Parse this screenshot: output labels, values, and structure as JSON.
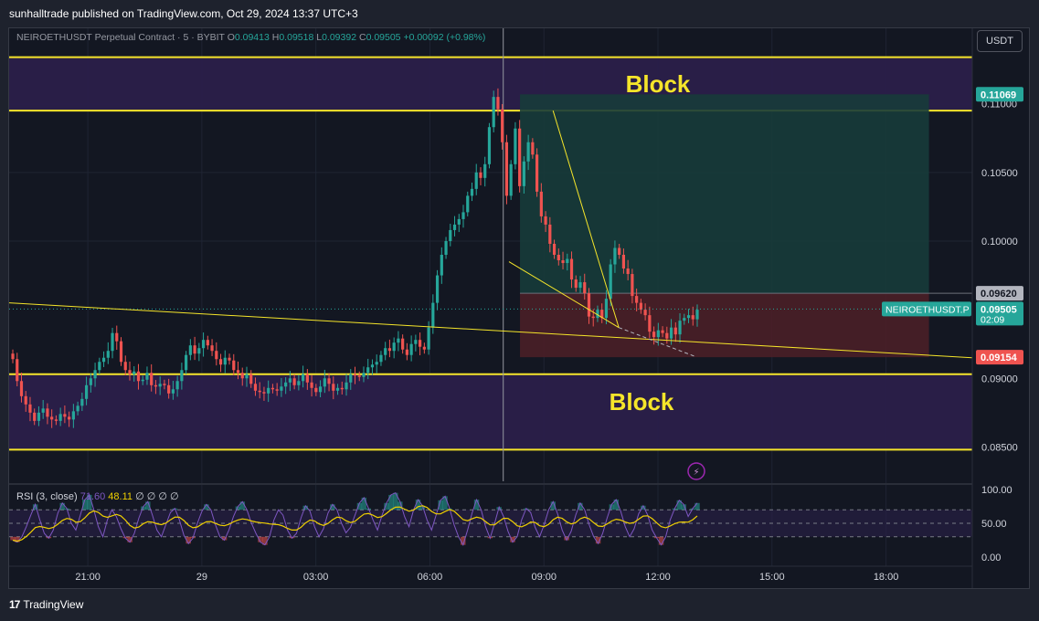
{
  "header": {
    "publisher": "sunhalltrade published on TradingView.com, Oct 29, 2024 13:37 UTC+3"
  },
  "legend": {
    "symbol": "NEIROETHUSDT Perpetual Contract · 5 · BYBIT",
    "o_label": "O",
    "o": "0.09413",
    "h_label": "H",
    "h": "0.09518",
    "l_label": "L",
    "l": "0.09392",
    "c_label": "C",
    "c": "0.09505",
    "change": "+0.00092 (+0.98%)"
  },
  "currency_button": "USDT",
  "labels": {
    "block_top": "Block",
    "block_bottom": "Block"
  },
  "rsi": {
    "name": "RSI (3, close)",
    "value1": "71.60",
    "value2": "48.11",
    "extras": "∅ ∅ ∅ ∅",
    "ticks": [
      "100.00",
      "50.00",
      "0.00"
    ]
  },
  "footer": {
    "brand": "TradingView",
    "logo": "17"
  },
  "colors": {
    "background": "#131722",
    "up": "#26a69a",
    "down": "#ef5350",
    "block_fill": "#2a1f4a",
    "yellow": "#f5e52a",
    "target_zone": "#173b3a",
    "stop_zone": "#4a1f27",
    "rsi_line": "#7e57c2",
    "rsi_ma": "#f0d000"
  },
  "chart_data": {
    "type": "candlestick",
    "symbol": "NEIROETHUSDT.P",
    "timeframe": "5",
    "price_axis": {
      "ticks": [
        "0.11000",
        "0.10500",
        "0.10000",
        "0.09000",
        "0.08500"
      ],
      "tick_values": [
        0.11,
        0.105,
        0.1,
        0.09,
        0.085
      ],
      "range": [
        0.0825,
        0.1155
      ]
    },
    "time_axis": {
      "ticks": [
        "21:00",
        "29",
        "03:00",
        "06:00",
        "09:00",
        "12:00",
        "15:00",
        "18:00"
      ],
      "tick_hours": [
        21,
        24,
        27,
        30,
        33,
        36,
        39,
        42
      ],
      "range_hours": [
        18.93,
        44.27
      ]
    },
    "price_tags": [
      {
        "label": "0.11069",
        "value": 0.11069,
        "color": "#26a69a",
        "text_color": "#ffffff"
      },
      {
        "label": "0.09620",
        "value": 0.0962,
        "color": "#b2b5be",
        "text_color": "#131722"
      },
      {
        "label": "0.09505",
        "value": 0.09505,
        "color": "#26a69a",
        "text_color": "#ffffff",
        "sub": "02:09",
        "symbol_tag": "NEIROETHUSDT.P"
      },
      {
        "label": "0.09154",
        "value": 0.09154,
        "color": "#ef5350",
        "text_color": "#ffffff"
      }
    ],
    "supply_block": {
      "top": 0.1134,
      "bottom": 0.1095,
      "label": "Block"
    },
    "demand_block": {
      "top": 0.0903,
      "bottom": 0.0848,
      "label": "Block"
    },
    "long_position": {
      "entry": 0.0962,
      "target": 0.11069,
      "stop": 0.09154,
      "start_hour": 32.37,
      "end_hour": 43.13
    },
    "trendlines": [
      {
        "from": [
          18.93,
          0.0955
        ],
        "to": [
          44.27,
          0.0915
        ]
      },
      {
        "from": [
          33.24,
          0.1095
        ],
        "to": [
          34.97,
          0.0937
        ]
      },
      {
        "from": [
          32.08,
          0.0985
        ],
        "to": [
          34.97,
          0.0937
        ]
      }
    ],
    "vertical_marker_hour": 31.93,
    "last_close": 0.09505,
    "close_series": [
      0.0914,
      0.0898,
      0.0887,
      0.0881,
      0.0875,
      0.0869,
      0.0875,
      0.0878,
      0.0872,
      0.087,
      0.0869,
      0.0874,
      0.0872,
      0.087,
      0.0876,
      0.088,
      0.0885,
      0.0895,
      0.09,
      0.0906,
      0.0912,
      0.0915,
      0.092,
      0.0933,
      0.0927,
      0.0912,
      0.0906,
      0.0903,
      0.0905,
      0.0898,
      0.0899,
      0.0904,
      0.0895,
      0.0894,
      0.0896,
      0.0895,
      0.0889,
      0.0892,
      0.0898,
      0.0906,
      0.0917,
      0.0924,
      0.0918,
      0.0922,
      0.0928,
      0.0924,
      0.092,
      0.0914,
      0.091,
      0.0915,
      0.0913,
      0.0906,
      0.0904,
      0.09,
      0.0903,
      0.0896,
      0.0891,
      0.089,
      0.0889,
      0.0893,
      0.0892,
      0.0891,
      0.0894,
      0.0897,
      0.09,
      0.0895,
      0.0898,
      0.0903,
      0.0897,
      0.0893,
      0.089,
      0.0894,
      0.09,
      0.0896,
      0.0891,
      0.0893,
      0.0892,
      0.0897,
      0.0903,
      0.0902,
      0.0901,
      0.0904,
      0.0908,
      0.091,
      0.0912,
      0.0917,
      0.0922,
      0.092,
      0.0926,
      0.0929,
      0.0921,
      0.0917,
      0.0925,
      0.0928,
      0.0923,
      0.0921,
      0.0937,
      0.0955,
      0.0975,
      0.099,
      0.1,
      0.1008,
      0.1012,
      0.1016,
      0.1021,
      0.1033,
      0.1038,
      0.105,
      0.1046,
      0.1056,
      0.1083,
      0.1105,
      0.1096,
      0.1072,
      0.1033,
      0.1056,
      0.1082,
      0.104,
      0.1058,
      0.1072,
      0.1063,
      0.1036,
      0.1018,
      0.1012,
      0.0998,
      0.099,
      0.0986,
      0.0984,
      0.0987,
      0.0972,
      0.0966,
      0.097,
      0.0962,
      0.0945,
      0.0944,
      0.095,
      0.0944,
      0.0958,
      0.0983,
      0.0995,
      0.099,
      0.098,
      0.0976,
      0.096,
      0.0955,
      0.095,
      0.0946,
      0.0934,
      0.093,
      0.0935,
      0.0933,
      0.0929,
      0.0937,
      0.0932,
      0.0942,
      0.0944,
      0.0946,
      0.0943,
      0.095
    ],
    "rsi_series": [
      25,
      22,
      30,
      45,
      62,
      78,
      55,
      35,
      28,
      40,
      65,
      80,
      72,
      50,
      40,
      62,
      85,
      92,
      70,
      45,
      30,
      55,
      70,
      60,
      42,
      28,
      22,
      35,
      58,
      75,
      82,
      62,
      40,
      30,
      48,
      66,
      72,
      55,
      32,
      20,
      28,
      50,
      68,
      78,
      70,
      48,
      30,
      25,
      40,
      60,
      75,
      82,
      70,
      50,
      35,
      22,
      18,
      30,
      55,
      70,
      62,
      40,
      28,
      35,
      58,
      76,
      68,
      45,
      30,
      42,
      65,
      78,
      70,
      50,
      36,
      44,
      62,
      80,
      88,
      72,
      55,
      40,
      62,
      80,
      92,
      95,
      82,
      60,
      45,
      70,
      85,
      76,
      55,
      40,
      62,
      84,
      90,
      72,
      48,
      30,
      18,
      40,
      65,
      85,
      70,
      45,
      28,
      50,
      74,
      60,
      38,
      22,
      30,
      55,
      72,
      66,
      44,
      30,
      48,
      70,
      82,
      64,
      40,
      25,
      38,
      62,
      80,
      70,
      48,
      30,
      20,
      35,
      58,
      78,
      85,
      68,
      45,
      30,
      42,
      64,
      76,
      62,
      40,
      28,
      18,
      30,
      55,
      72,
      84,
      78,
      60,
      72,
      80
    ],
    "rsi_levels": {
      "upper": 70,
      "middle": 50,
      "lower": 30
    }
  }
}
